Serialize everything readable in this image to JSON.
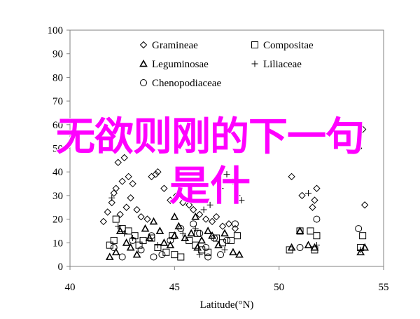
{
  "chart_data": {
    "type": "scatter",
    "xlabel": "Latitude(°N)",
    "ylabel": "",
    "xlim": [
      40,
      55
    ],
    "ylim": [
      0,
      100
    ],
    "xticks": [
      "40",
      "45",
      "50",
      "55"
    ],
    "yticks": [
      "0",
      "10",
      "20",
      "30",
      "40",
      "50",
      "60",
      "70",
      "80",
      "90",
      "100"
    ],
    "grid": false,
    "legend": "top",
    "series": [
      {
        "name": "Gramineae",
        "marker": "diamond",
        "points": [
          [
            41.6,
            19
          ],
          [
            41.8,
            23
          ],
          [
            42.0,
            27
          ],
          [
            42.1,
            31
          ],
          [
            42.3,
            44
          ],
          [
            42.6,
            46
          ],
          [
            42.2,
            33
          ],
          [
            42.5,
            36
          ],
          [
            42.8,
            38
          ],
          [
            43.0,
            35
          ],
          [
            42.4,
            22
          ],
          [
            42.7,
            25
          ],
          [
            42.9,
            29
          ],
          [
            43.2,
            24
          ],
          [
            43.4,
            21
          ],
          [
            43.7,
            20
          ],
          [
            43.9,
            38
          ],
          [
            44.1,
            39
          ],
          [
            44.2,
            40
          ],
          [
            44.5,
            33
          ],
          [
            44.8,
            28
          ],
          [
            45.1,
            30
          ],
          [
            45.4,
            27
          ],
          [
            45.7,
            26
          ],
          [
            45.9,
            24
          ],
          [
            46.2,
            22
          ],
          [
            46.5,
            20
          ],
          [
            46.8,
            19
          ],
          [
            47.0,
            21
          ],
          [
            47.3,
            17
          ],
          [
            47.6,
            18
          ],
          [
            47.9,
            16
          ],
          [
            50.6,
            38
          ],
          [
            51.1,
            30
          ],
          [
            51.6,
            25
          ],
          [
            51.7,
            28
          ],
          [
            51.8,
            33
          ],
          [
            53.8,
            50
          ],
          [
            54.0,
            58
          ],
          [
            54.1,
            26
          ]
        ]
      },
      {
        "name": "Compositae",
        "points": [
          [
            42.2,
            20
          ],
          [
            42.5,
            16
          ],
          [
            42.8,
            15
          ],
          [
            43.1,
            13
          ],
          [
            43.5,
            11
          ],
          [
            43.9,
            12
          ],
          [
            44.2,
            8
          ],
          [
            44.6,
            6
          ],
          [
            45.0,
            5
          ],
          [
            45.3,
            4
          ],
          [
            45.7,
            11
          ],
          [
            46.0,
            9
          ],
          [
            46.3,
            7
          ],
          [
            46.6,
            6
          ],
          [
            47.0,
            12
          ],
          [
            47.3,
            10
          ],
          [
            47.7,
            11
          ],
          [
            48.0,
            13
          ],
          [
            50.5,
            7
          ],
          [
            51.0,
            15
          ],
          [
            51.5,
            15
          ],
          [
            51.7,
            7
          ],
          [
            51.8,
            13
          ],
          [
            53.9,
            8
          ],
          [
            54.0,
            13
          ],
          [
            41.9,
            9
          ],
          [
            42.1,
            11
          ],
          [
            43.3,
            9
          ],
          [
            44.9,
            13
          ],
          [
            46.1,
            14
          ]
        ]
      },
      {
        "name": "Leguminosae",
        "points": [
          [
            41.9,
            4
          ],
          [
            42.2,
            6
          ],
          [
            42.4,
            15
          ],
          [
            42.7,
            10
          ],
          [
            42.9,
            8
          ],
          [
            43.2,
            5
          ],
          [
            43.6,
            16
          ],
          [
            43.8,
            12
          ],
          [
            44.0,
            19
          ],
          [
            44.3,
            15
          ],
          [
            44.5,
            10
          ],
          [
            44.8,
            9
          ],
          [
            45.0,
            13
          ],
          [
            45.2,
            17
          ],
          [
            45.5,
            12
          ],
          [
            45.8,
            14
          ],
          [
            46.1,
            8
          ],
          [
            46.3,
            11
          ],
          [
            46.6,
            15
          ],
          [
            46.8,
            13
          ],
          [
            47.1,
            9
          ],
          [
            47.4,
            14
          ],
          [
            47.8,
            6
          ],
          [
            48.1,
            5
          ],
          [
            50.6,
            8
          ],
          [
            51.0,
            15
          ],
          [
            51.4,
            9
          ],
          [
            51.7,
            8
          ],
          [
            53.9,
            6
          ],
          [
            54.1,
            8
          ],
          [
            45.0,
            21
          ],
          [
            46.0,
            21
          ]
        ]
      },
      {
        "name": "Liliaceae",
        "points": [
          [
            42.0,
            29
          ],
          [
            42.3,
            17
          ],
          [
            42.6,
            14
          ],
          [
            43.0,
            12
          ],
          [
            44.2,
            9
          ],
          [
            45.4,
            14
          ],
          [
            46.0,
            16
          ],
          [
            46.4,
            24
          ],
          [
            46.7,
            26
          ],
          [
            47.0,
            37
          ],
          [
            47.2,
            33
          ],
          [
            47.5,
            39
          ],
          [
            47.8,
            36
          ],
          [
            48.0,
            30
          ],
          [
            48.2,
            28
          ],
          [
            51.4,
            31
          ],
          [
            51.8,
            9
          ],
          [
            53.9,
            7
          ],
          [
            46.2,
            5
          ],
          [
            47.4,
            7
          ]
        ]
      },
      {
        "name": "Chenopodiaceae",
        "points": [
          [
            42.5,
            4
          ],
          [
            43.0,
            11
          ],
          [
            43.4,
            7
          ],
          [
            43.9,
            13
          ],
          [
            44.4,
            5
          ],
          [
            44.8,
            11
          ],
          [
            45.3,
            16
          ],
          [
            45.9,
            18
          ],
          [
            46.2,
            14
          ],
          [
            46.5,
            8
          ],
          [
            46.9,
            12
          ],
          [
            47.2,
            5
          ],
          [
            47.5,
            11
          ],
          [
            47.9,
            18
          ],
          [
            51.0,
            8
          ],
          [
            51.8,
            20
          ],
          [
            53.8,
            16
          ],
          [
            42.1,
            8
          ],
          [
            44.0,
            4
          ],
          [
            46.6,
            4
          ]
        ]
      }
    ]
  },
  "overlay": {
    "line1": "无欲则刚的下一句",
    "line2": "是什"
  }
}
